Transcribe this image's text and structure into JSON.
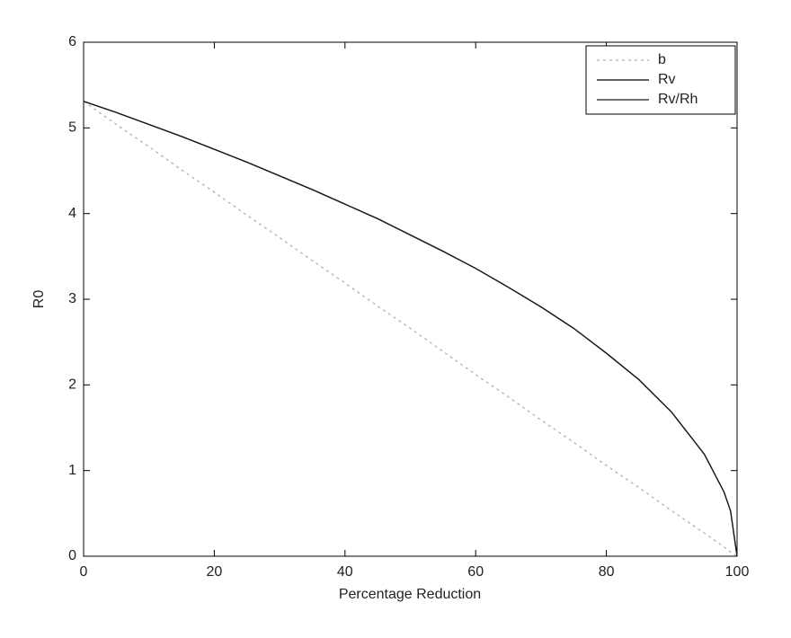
{
  "chart_data": {
    "type": "line",
    "xlabel": "Percentage Reduction",
    "ylabel": "R0",
    "x": [
      0,
      5,
      10,
      15,
      20,
      25,
      30,
      35,
      40,
      45,
      50,
      55,
      60,
      65,
      70,
      75,
      80,
      85,
      90,
      95,
      98,
      99,
      100
    ],
    "series": [
      {
        "name": "b",
        "color": "#b0b0b0",
        "linestyle": "dotted",
        "values": [
          5.31,
          5.04,
          4.78,
          4.51,
          4.25,
          3.98,
          3.72,
          3.45,
          3.19,
          2.92,
          2.66,
          2.39,
          2.12,
          1.86,
          1.59,
          1.33,
          1.06,
          0.8,
          0.53,
          0.27,
          0.11,
          0.05,
          0
        ]
      },
      {
        "name": "Rv",
        "color": "#000000",
        "linestyle": "solid",
        "values": [
          5.31,
          5.18,
          5.04,
          4.9,
          4.75,
          4.6,
          4.44,
          4.28,
          4.11,
          3.94,
          3.75,
          3.56,
          3.36,
          3.14,
          2.91,
          2.66,
          2.37,
          2.06,
          1.68,
          1.19,
          0.75,
          0.53,
          0
        ]
      },
      {
        "name": "Rv/Rh",
        "color": "#1a1a1a",
        "linestyle": "solid",
        "values": [
          5.31,
          5.18,
          5.04,
          4.9,
          4.75,
          4.6,
          4.44,
          4.28,
          4.11,
          3.94,
          3.75,
          3.56,
          3.36,
          3.14,
          2.91,
          2.66,
          2.37,
          2.06,
          1.68,
          1.19,
          0.75,
          0.53,
          0
        ]
      }
    ],
    "xlim": [
      0,
      100
    ],
    "xticks": [
      0,
      20,
      40,
      60,
      80,
      100
    ],
    "ylim": [
      0,
      6
    ],
    "yticks": [
      0,
      1,
      2,
      3,
      4,
      5,
      6
    ],
    "grid": false,
    "legend": "top-right"
  }
}
